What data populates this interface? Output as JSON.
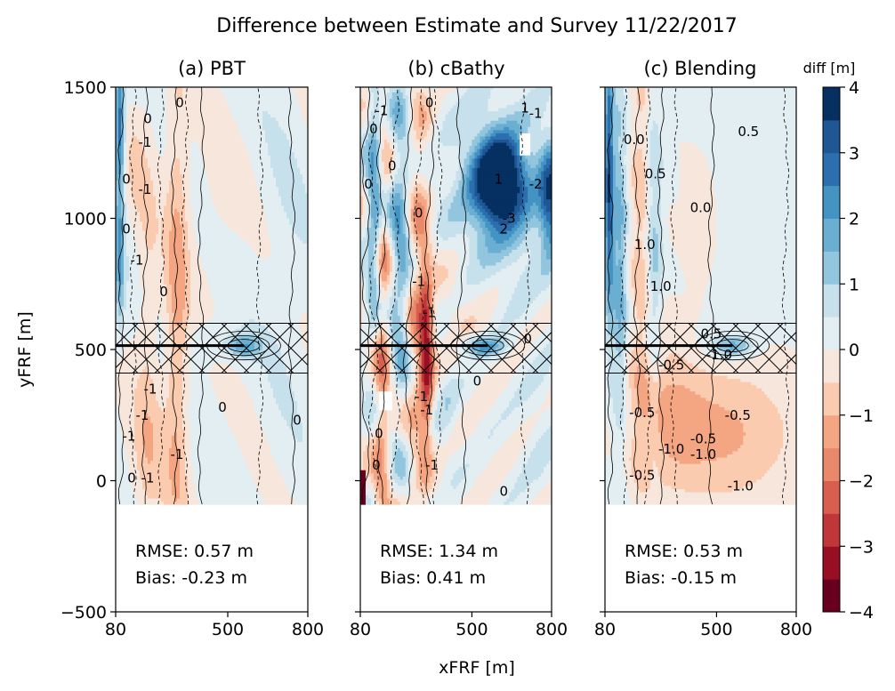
{
  "chart_data": [
    {
      "type": "heatmap",
      "title": "Difference between Estimate and Survey 11/22/2017",
      "xlabel": "xFRF [m]",
      "ylabel": "yFRF [m]",
      "xlim": [
        80,
        800
      ],
      "ylim": [
        -500,
        1500
      ],
      "xticks": [
        80,
        500,
        800
      ],
      "yticks": [
        1500,
        1000,
        500,
        0,
        -500
      ],
      "ytick_labels": [
        "1500",
        "1000",
        "500",
        "0",
        "−500"
      ],
      "data_domain": {
        "y": [
          -90,
          1500
        ],
        "x": [
          80,
          800
        ]
      },
      "pier_y": 515,
      "pier_band_y": [
        410,
        600
      ],
      "panels": [
        {
          "id": "pbt",
          "title": "(a) PBT",
          "rmse_text": "RMSE:  0.57 m",
          "bias_text": "Bias: -0.23 m",
          "rmse_m": 0.57,
          "bias_m": -0.23,
          "contour_labels": [
            {
              "text": "0",
              "x": 200,
              "y": 1380
            },
            {
              "text": "0",
              "x": 320,
              "y": 1440
            },
            {
              "text": "-1",
              "x": 190,
              "y": 1290
            },
            {
              "text": "0",
              "x": 120,
              "y": 1150
            },
            {
              "text": "-1",
              "x": 190,
              "y": 1110
            },
            {
              "text": "0",
              "x": 120,
              "y": 960
            },
            {
              "text": "-1",
              "x": 160,
              "y": 840
            },
            {
              "text": "0",
              "x": 260,
              "y": 720
            },
            {
              "text": "-1",
              "x": 210,
              "y": 350
            },
            {
              "text": "0",
              "x": 480,
              "y": 280
            },
            {
              "text": "-1",
              "x": 180,
              "y": 250
            },
            {
              "text": "-1",
              "x": 130,
              "y": 170
            },
            {
              "text": "-1",
              "x": 310,
              "y": 100
            },
            {
              "text": "0",
              "x": 140,
              "y": 10
            },
            {
              "text": "-1",
              "x": 200,
              "y": 10
            },
            {
              "text": "0",
              "x": 760,
              "y": 230
            }
          ]
        },
        {
          "id": "cbathy",
          "title": "(b) cBathy",
          "rmse_text": "RMSE:  1.34 m",
          "bias_text": "Bias:  0.41 m",
          "rmse_m": 1.34,
          "bias_m": 0.41,
          "contour_labels": [
            {
              "text": "-1",
              "x": 160,
              "y": 1410
            },
            {
              "text": "0",
              "x": 340,
              "y": 1440
            },
            {
              "text": "0",
              "x": 130,
              "y": 1340
            },
            {
              "text": "1",
              "x": 700,
              "y": 1420
            },
            {
              "text": "-1",
              "x": 740,
              "y": 1400
            },
            {
              "text": "0",
              "x": 200,
              "y": 1200
            },
            {
              "text": "0",
              "x": 110,
              "y": 1130
            },
            {
              "text": "-2",
              "x": 740,
              "y": 1130
            },
            {
              "text": "-3",
              "x": 640,
              "y": 1000
            },
            {
              "text": "2",
              "x": 620,
              "y": 960
            },
            {
              "text": "1",
              "x": 600,
              "y": 1150
            },
            {
              "text": "0",
              "x": 300,
              "y": 1020
            },
            {
              "text": "-1",
              "x": 300,
              "y": 760
            },
            {
              "text": "-1",
              "x": 340,
              "y": 640
            },
            {
              "text": "0",
              "x": 710,
              "y": 540
            },
            {
              "text": "0",
              "x": 520,
              "y": 380
            },
            {
              "text": "-1",
              "x": 310,
              "y": 320
            },
            {
              "text": "-1",
              "x": 330,
              "y": 270
            },
            {
              "text": "0",
              "x": 150,
              "y": 180
            },
            {
              "text": "0",
              "x": 140,
              "y": 60
            },
            {
              "text": "-1",
              "x": 350,
              "y": 60
            },
            {
              "text": "0",
              "x": 620,
              "y": -40
            }
          ]
        },
        {
          "id": "blending",
          "title": "(c) Blending",
          "rmse_text": "RMSE:  0.53 m",
          "bias_text": "Bias: -0.15 m",
          "rmse_m": 0.53,
          "bias_m": -0.15,
          "contour_labels": [
            {
              "text": "0.0",
              "x": 190,
              "y": 1300
            },
            {
              "text": "0.5",
              "x": 620,
              "y": 1330
            },
            {
              "text": "0.5",
              "x": 270,
              "y": 1170
            },
            {
              "text": "0.0",
              "x": 440,
              "y": 1040
            },
            {
              "text": "1.0",
              "x": 230,
              "y": 900
            },
            {
              "text": "1.0",
              "x": 290,
              "y": 740
            },
            {
              "text": "-0.5",
              "x": 330,
              "y": 440
            },
            {
              "text": "0.5",
              "x": 480,
              "y": 560
            },
            {
              "text": "-1.0",
              "x": 510,
              "y": 480
            },
            {
              "text": "-0.5",
              "x": 220,
              "y": 260
            },
            {
              "text": "-0.5",
              "x": 580,
              "y": 250
            },
            {
              "text": "-0.5",
              "x": 450,
              "y": 160
            },
            {
              "text": "-1.0",
              "x": 450,
              "y": 100
            },
            {
              "text": "-1.0",
              "x": 330,
              "y": 120
            },
            {
              "text": "-0.5",
              "x": 220,
              "y": 20
            },
            {
              "text": "-1.0",
              "x": 590,
              "y": -20
            }
          ]
        }
      ],
      "colorbar": {
        "label": "diff [m]",
        "min": -4,
        "max": 4,
        "levels": [
          -4,
          -3.5,
          -3,
          -2.5,
          -2,
          -1.5,
          -1,
          -0.5,
          0,
          0.5,
          1,
          1.5,
          2,
          2.5,
          3,
          3.5,
          4
        ],
        "ticks": [
          4,
          3,
          2,
          1,
          0,
          -1,
          -2,
          -3,
          -4
        ],
        "tick_labels": [
          "4",
          "3",
          "2",
          "1",
          "0",
          "−1",
          "−2",
          "−3",
          "−4"
        ],
        "colors": [
          "#67001f",
          "#980e23",
          "#c13639",
          "#d6604d",
          "#e8896b",
          "#f4a582",
          "#fbcbb0",
          "#f6e6db",
          "#e3eef3",
          "#c6e0ec",
          "#92c5de",
          "#6aaed2",
          "#4393c3",
          "#2b6fae",
          "#1f5694",
          "#053061"
        ]
      }
    }
  ]
}
